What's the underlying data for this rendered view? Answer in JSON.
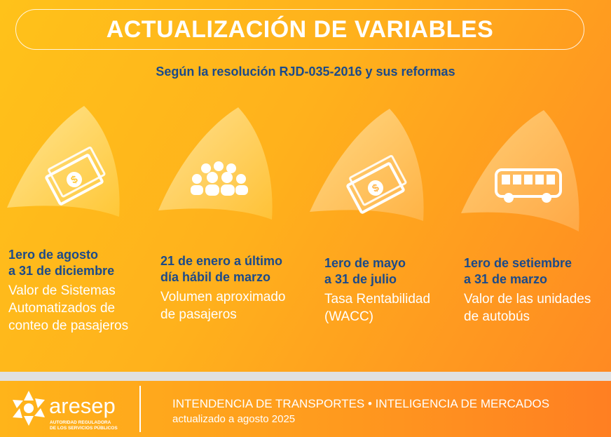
{
  "header": {
    "title": "ACTUALIZACIÓN DE VARIABLES",
    "subtitle": "Según la resolución RJD-035-2016 y sus reformas"
  },
  "items": [
    {
      "icon": "money-bill-icon",
      "date_line1": "1ero de agosto",
      "date_line2": "a 31 de diciembre",
      "desc_lines": [
        "Valor de Sistemas",
        "Automatizados de",
        "conteo de pasajeros"
      ]
    },
    {
      "icon": "people-group-icon",
      "date_line1": "21 de enero a último",
      "date_line2": "día hábil de marzo",
      "desc_lines": [
        "Volumen aproximado",
        "de pasajeros"
      ]
    },
    {
      "icon": "money-bill-icon",
      "date_line1": "1ero de mayo",
      "date_line2": "a 31 de julio",
      "desc_lines": [
        "Tasa Rentabilidad",
        "(WACC)"
      ]
    },
    {
      "icon": "bus-icon",
      "date_line1": "1ero de setiembre",
      "date_line2": "a 31 de marzo",
      "desc_lines": [
        "Valor de las unidades",
        "de autobús"
      ]
    }
  ],
  "footer": {
    "logo_text": "aresep",
    "logo_sub_line1": "AUTORIDAD REGULADORA",
    "logo_sub_line2": "DE LOS SERVICIOS PÚBLICOS",
    "line1": "INTENDENCIA DE TRANSPORTES • INTELIGENCIA DE MERCADOS",
    "line2": "actualizado a agosto 2025"
  },
  "colors": {
    "accent_blue": "#1b4a8a",
    "orange": "#ff9a1e",
    "yellow": "#ffc21a"
  }
}
